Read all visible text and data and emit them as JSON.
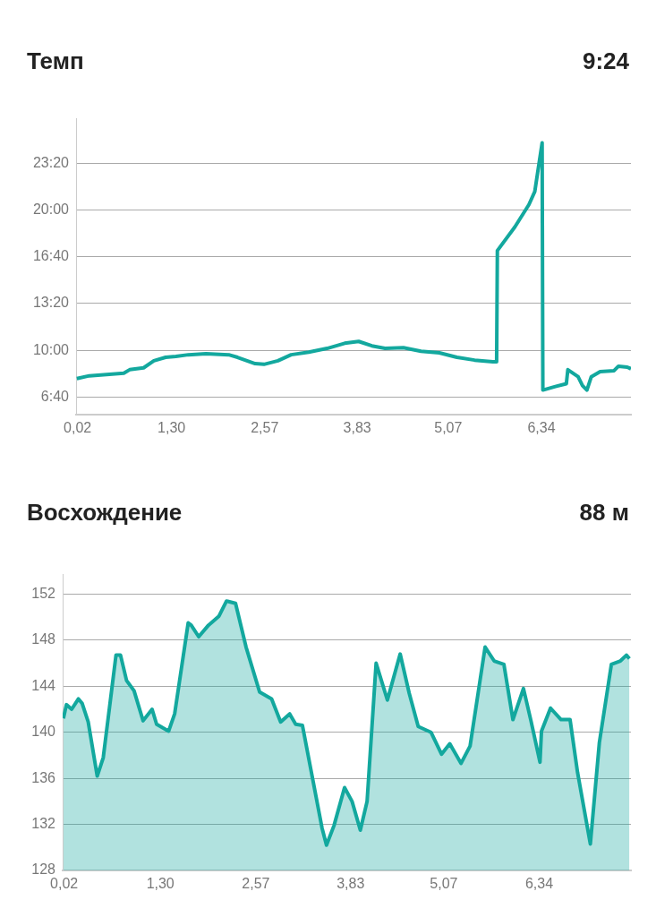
{
  "chart_data": [
    {
      "type": "line",
      "title": "Темп",
      "annotations": [
        "9:24"
      ],
      "x": [
        0.01,
        0.18,
        0.65,
        0.73,
        0.92,
        1.06,
        1.22,
        1.36,
        1.53,
        1.77,
        2.08,
        2.2,
        2.44,
        2.56,
        2.75,
        2.93,
        3.17,
        3.42,
        3.66,
        3.85,
        4.03,
        4.21,
        4.46,
        4.7,
        4.95,
        5.19,
        5.43,
        5.68,
        5.73,
        5.74,
        5.98,
        6.17,
        6.25,
        6.35,
        6.36,
        6.53,
        6.68,
        6.7,
        6.84,
        6.9,
        6.96,
        7.02,
        7.14,
        7.33,
        7.39,
        7.51,
        7.56
      ],
      "series": [
        {
          "color": "#13a89e",
          "values": [
            479,
            491,
            502,
            517,
            525,
            555,
            570,
            574,
            581,
            585,
            581,
            570,
            543,
            540,
            555,
            581,
            592,
            608,
            630,
            638,
            619,
            608,
            611,
            596,
            589,
            570,
            558,
            551,
            551,
            1026,
            1128,
            1223,
            1279,
            1487,
            430,
            445,
            457,
            517,
            487,
            449,
            430,
            487,
            509,
            513,
            532,
            528,
            521
          ]
        }
      ],
      "xlim": [
        0,
        7.56
      ],
      "xticks": [
        {
          "value": 0.02,
          "label": "0,02"
        },
        {
          "value": 1.3,
          "label": "1,30"
        },
        {
          "value": 2.57,
          "label": "2,57"
        },
        {
          "value": 3.83,
          "label": "3,83"
        },
        {
          "value": 5.07,
          "label": "5,07"
        },
        {
          "value": 6.34,
          "label": "6,34"
        }
      ],
      "ylim": [
        325,
        1590
      ],
      "yticks": [
        {
          "value": 400,
          "label": "6:40"
        },
        {
          "value": 600,
          "label": "10:00"
        },
        {
          "value": 800,
          "label": "13:20"
        },
        {
          "value": 1000,
          "label": "16:40"
        },
        {
          "value": 1200,
          "label": "20:00"
        },
        {
          "value": 1400,
          "label": "23:20"
        }
      ],
      "grid": "y",
      "legend": false,
      "marker": "none",
      "line_style": "solid"
    },
    {
      "type": "area",
      "title": "Восхождение",
      "annotations": [
        "88 м"
      ],
      "x": [
        0.01,
        0.05,
        0.12,
        0.21,
        0.26,
        0.34,
        0.46,
        0.54,
        0.71,
        0.77,
        0.85,
        0.95,
        1.07,
        1.19,
        1.25,
        1.41,
        1.49,
        1.67,
        1.71,
        1.81,
        1.94,
        2.08,
        2.18,
        2.3,
        2.44,
        2.62,
        2.78,
        2.9,
        3.02,
        3.1,
        3.19,
        3.33,
        3.45,
        3.51,
        3.61,
        3.75,
        3.85,
        3.96,
        4.05,
        4.17,
        4.32,
        4.49,
        4.61,
        4.73,
        4.9,
        5.04,
        5.15,
        5.3,
        5.42,
        5.62,
        5.74,
        5.87,
        5.99,
        6.13,
        6.23,
        6.35,
        6.37,
        6.49,
        6.63,
        6.75,
        6.85,
        7.02,
        7.14,
        7.3,
        7.42,
        7.5,
        7.54
      ],
      "series": [
        {
          "color": "#13a89e",
          "values": [
            141.2,
            142.4,
            142.0,
            142.9,
            142.5,
            140.9,
            136.2,
            137.8,
            146.7,
            146.7,
            144.5,
            143.6,
            141.0,
            142.0,
            140.7,
            140.1,
            141.6,
            149.5,
            149.3,
            148.3,
            149.3,
            150.1,
            151.4,
            151.2,
            147.4,
            143.5,
            142.9,
            140.9,
            141.6,
            140.7,
            140.6,
            135.8,
            131.7,
            130.2,
            131.9,
            135.2,
            134.0,
            131.5,
            134.0,
            146.0,
            142.8,
            146.8,
            143.4,
            140.5,
            140.0,
            138.1,
            139.0,
            137.3,
            138.8,
            147.4,
            146.2,
            145.9,
            141.1,
            143.8,
            141.0,
            137.4,
            140.1,
            142.1,
            141.1,
            141.1,
            136.5,
            130.3,
            139.1,
            145.9,
            146.2,
            146.7,
            146.4
          ]
        }
      ],
      "xlim": [
        0,
        7.56
      ],
      "xticks": [
        {
          "value": 0.02,
          "label": "0,02"
        },
        {
          "value": 1.3,
          "label": "1,30"
        },
        {
          "value": 2.57,
          "label": "2,57"
        },
        {
          "value": 3.83,
          "label": "3,83"
        },
        {
          "value": 5.07,
          "label": "5,07"
        },
        {
          "value": 6.34,
          "label": "6,34"
        }
      ],
      "ylim": [
        128,
        153.7
      ],
      "yticks": [
        128,
        132,
        136,
        140,
        144,
        148,
        152
      ],
      "grid": "y",
      "legend": false,
      "marker": "none",
      "line_style": "solid"
    }
  ]
}
